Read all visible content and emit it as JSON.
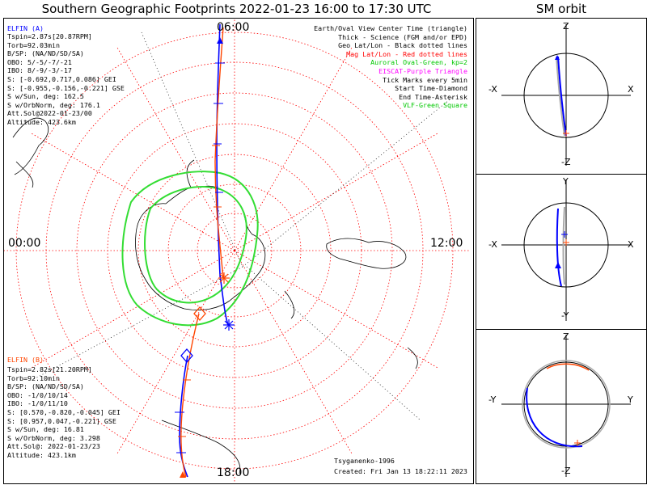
{
  "titles": {
    "main": "Southern Geographic Footprints 2022-01-23 16:00 to 17:30 UTC",
    "sm_orbit": "SM orbit"
  },
  "clock_labels": {
    "top": "06:00",
    "left": "00:00",
    "right": "12:00",
    "bottom": "18:00"
  },
  "elfin_a": {
    "header": "ELFIN (A)",
    "color": "#0000ff",
    "lines": [
      "Tspin=2.87s[20.87RPM]",
      "Torb=92.03min",
      "B/SP: (NA/ND/SD/SA)",
      "OBO: 5/-5/-7/-21",
      "IBO: 8/-9/-3/-17",
      "S: [-0.692,0.717,0.086] GEI",
      "S: [-0.955,-0.156,-0.221] GSE",
      "S w/Sun, deg: 162.5",
      "S w/OrbNorm, deg: 176.1",
      "Att.Sol@2022-01-23/00",
      "Altitude: 423.6km"
    ]
  },
  "elfin_b": {
    "header": "ELFIN (B)",
    "color": "#ff4500",
    "lines": [
      "Tspin=2.82s[21.20RPM]",
      "Torb=92.10min",
      "B/SP: (NA/ND/SD/SA)",
      "OBO: -1/0/10/14",
      "IBO: -1/0/11/10",
      "S: [0.570,-0.820,-0.045] GEI",
      "S: [0.957,0.047,-0.221] GSE",
      "S w/Sun, deg: 16.81",
      "S w/OrbNorm, deg: 3.298",
      "Att.Sol@: 2022-01-23/23",
      "Altitude: 423.1km"
    ]
  },
  "legend": [
    {
      "text": "Earth/Oval View Center Time (triangle)",
      "color": "#000000"
    },
    {
      "text": "Thick - Science (FGM and/or EPD)",
      "color": "#000000"
    },
    {
      "text": "Geo Lat/Lon - Black dotted lines",
      "color": "#000000"
    },
    {
      "text": "Mag Lat/Lon - Red dotted lines",
      "color": "#ff0000"
    },
    {
      "text": "Auroral Oval-Green, kp=2",
      "color": "#00c800"
    },
    {
      "text": "EISCAT-Purple Triangle",
      "color": "#ff00ff"
    },
    {
      "text": "Tick Marks every 5min",
      "color": "#000000"
    },
    {
      "text": "Start Time-Diamond",
      "color": "#000000"
    },
    {
      "text": "End Time-Asterisk",
      "color": "#000000"
    },
    {
      "text": "VLF-Green Square",
      "color": "#00c800"
    }
  ],
  "footer": {
    "model": "Tsyganenko-1996",
    "created": "Created: Fri Jan 13 18:22:11 2023"
  },
  "sm_panels": [
    {
      "top": "Z",
      "bottom": "-Z",
      "left": "-X",
      "right": "X"
    },
    {
      "top": "Y",
      "bottom": "-Y",
      "left": "-X",
      "right": "X"
    },
    {
      "top": "Z",
      "bottom": "-Z",
      "left": "-Y",
      "right": "Y"
    }
  ],
  "colors": {
    "map_grid": "#ff0000",
    "geo_grid": "#000000",
    "oval": "#33dd33",
    "track_a": "#0000ff",
    "track_b": "#ff4500",
    "orbit_gray": "#aaaaaa"
  }
}
